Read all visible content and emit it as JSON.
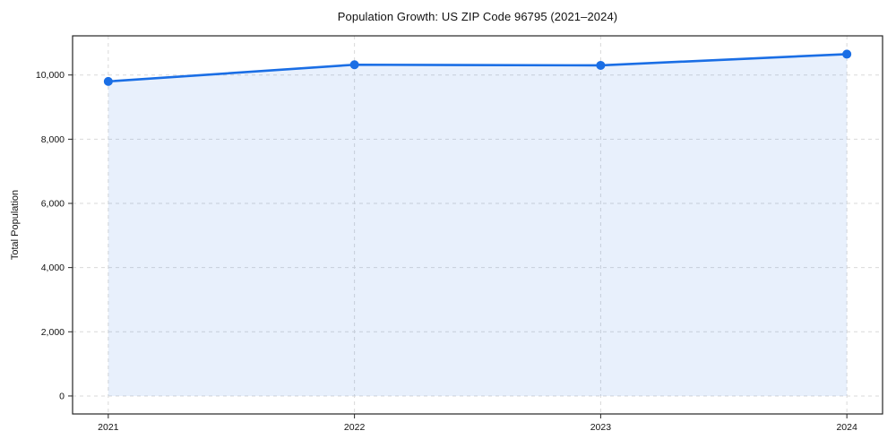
{
  "figure": {
    "background": "#ffffff"
  },
  "chart_data": {
    "type": "area",
    "title": "Population Growth: US ZIP Code 96795 (2021–2024)",
    "xlabel": "",
    "ylabel": "Total Population",
    "x": [
      2021,
      2022,
      2023,
      2024
    ],
    "series": [
      {
        "name": "Total Population",
        "values": [
          9800,
          10320,
          10300,
          10650
        ]
      }
    ],
    "xticks": {
      "values": [
        2021,
        2022,
        2023,
        2024
      ],
      "labels": [
        "2021",
        "2022",
        "2023",
        "2024"
      ]
    },
    "yticks": {
      "values": [
        0,
        2000,
        4000,
        6000,
        8000,
        10000
      ],
      "labels": [
        "0",
        "2,000",
        "4,000",
        "6,000",
        "8,000",
        "10,000"
      ]
    },
    "xlim": [
      2020.855,
      2024.145
    ],
    "ylim": [
      -560,
      11220
    ],
    "grid": true,
    "grid_style": "dashed",
    "legend": false,
    "fill_to_value": 0,
    "colors": {
      "line": "#1a6ee5",
      "marker": "#1a6ee5",
      "fill": "#1a6ee5",
      "fill_opacity": 0.1,
      "grid": "#d9d9d9",
      "spine": "#262626",
      "text": "#111111"
    }
  }
}
